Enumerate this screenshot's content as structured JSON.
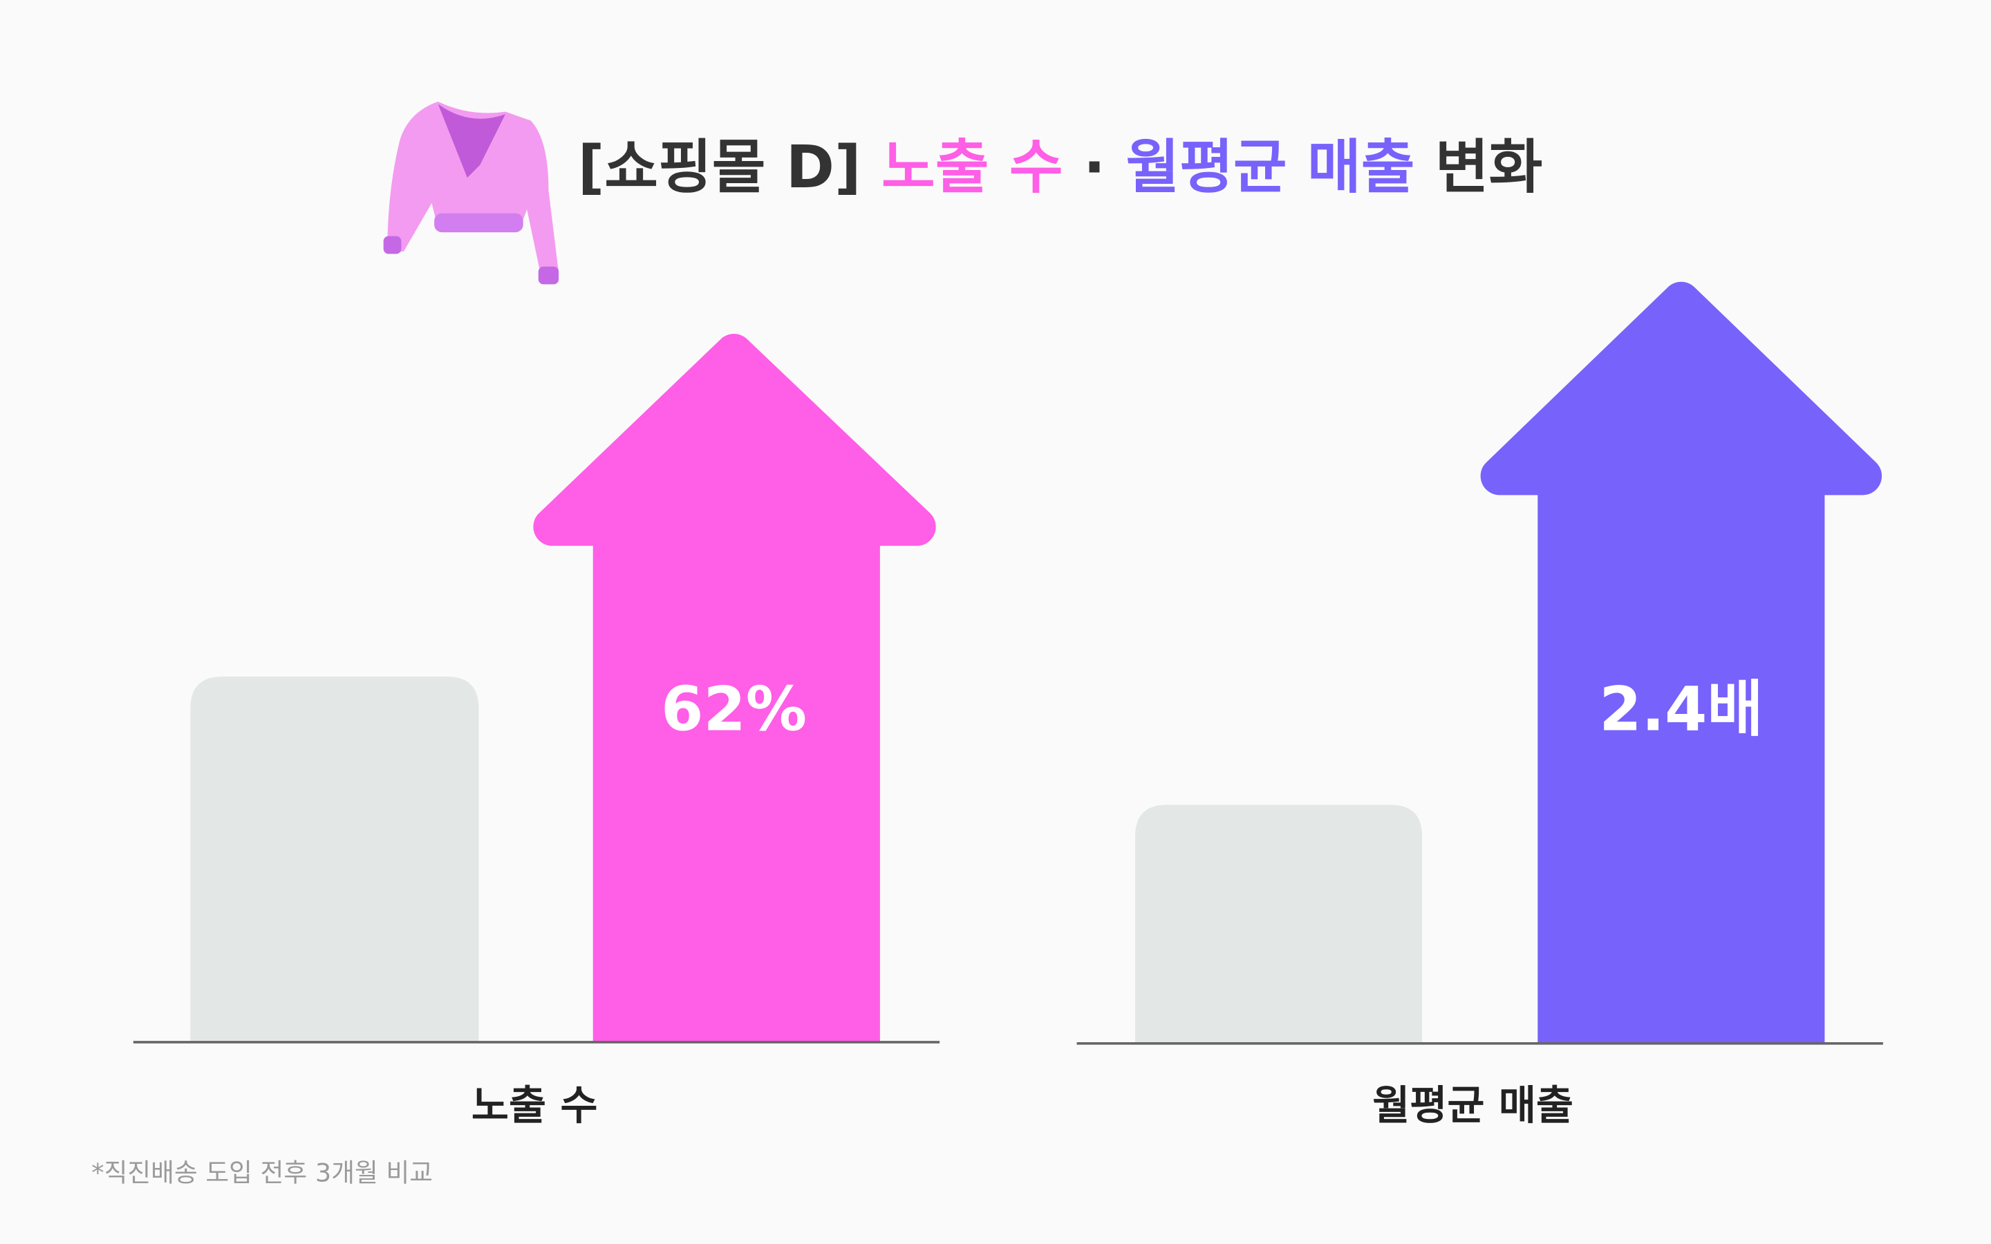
{
  "title": {
    "parts": [
      "[쇼핑몰 D]",
      "노출 수",
      "·",
      "월평균",
      "매출",
      "변화"
    ]
  },
  "panels": [
    {
      "label": "노출 수",
      "value_label": "62%"
    },
    {
      "label": "월평균 매출",
      "value_label": "2.4배"
    }
  ],
  "footnote": "*직진배송 도입 전후 3개월 비교"
}
